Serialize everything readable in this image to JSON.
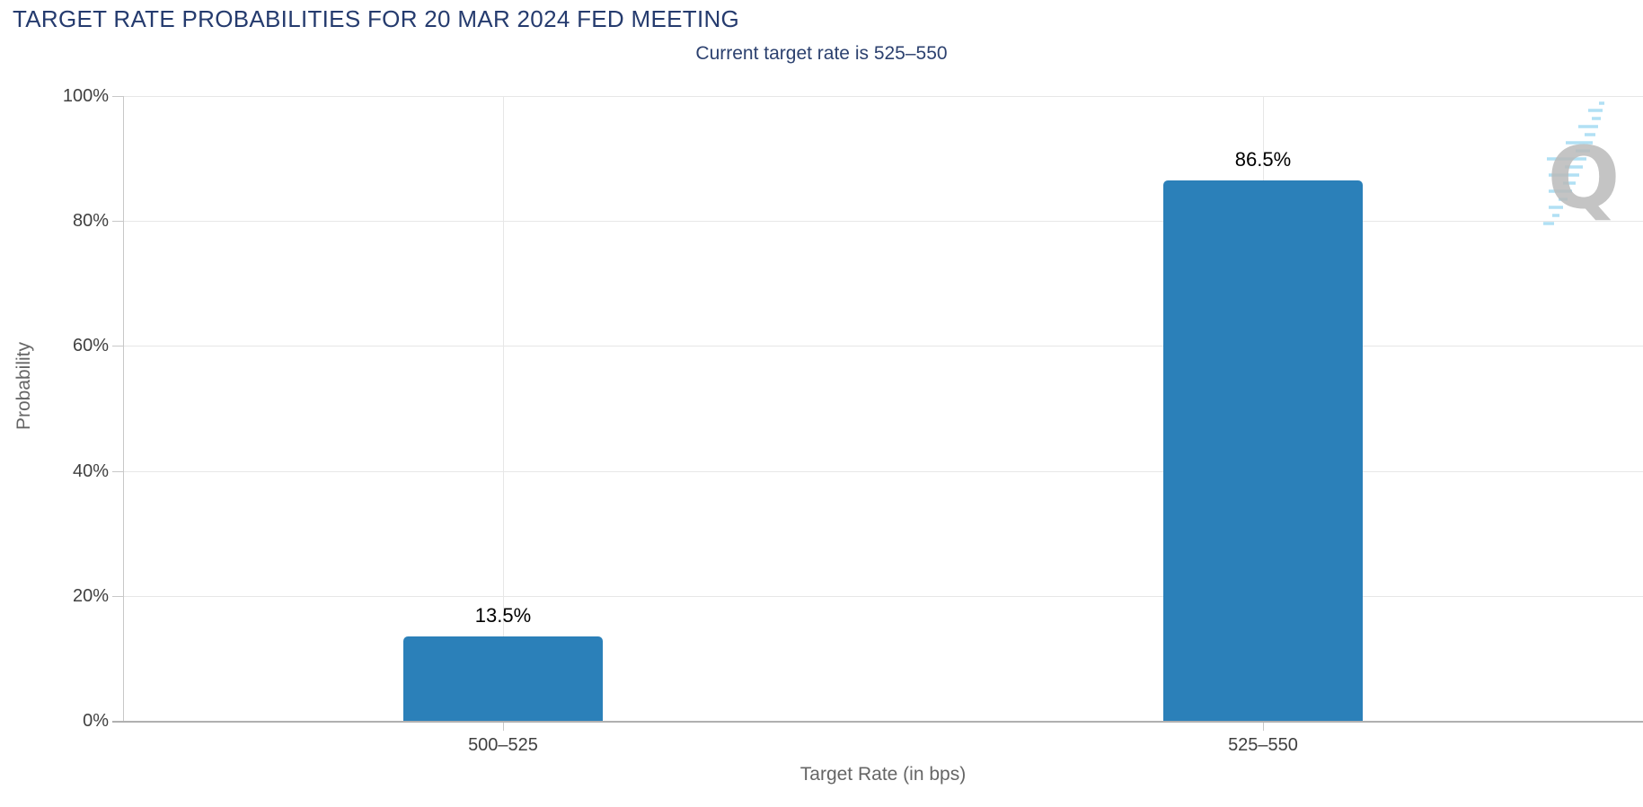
{
  "chart_data": {
    "type": "bar",
    "title": "TARGET RATE PROBABILITIES FOR 20 MAR 2024 FED MEETING",
    "subtitle": "Current target rate is 525–550",
    "categories": [
      "500–525",
      "525–550"
    ],
    "values": [
      13.5,
      86.5
    ],
    "value_labels": [
      "13.5%",
      "86.5%"
    ],
    "xlabel": "Target Rate (in bps)",
    "ylabel": "Probability",
    "ylim": [
      0,
      100
    ],
    "yticks": [
      0,
      20,
      40,
      60,
      80,
      100
    ],
    "ytick_labels": [
      "0%",
      "20%",
      "40%",
      "60%",
      "80%",
      "100%"
    ],
    "grid": true,
    "legend": "none",
    "bar_color": "#2b80b9"
  },
  "colors": {
    "title_navy": "#253b6e",
    "subtitle_navy": "#2c416f",
    "bar_blue": "#2b80b9",
    "grid_line": "#e7e7e7",
    "axis_line": "#c8c8c8",
    "axis_line_dark": "#b0b0b0",
    "axis_label_gray": "#404040",
    "axis_title_gray": "#666666",
    "data_label_black": "#000000",
    "logo_gray": "#b3b3b3",
    "logo_blue": "#a5dcf3"
  },
  "watermark": {
    "letter": "Q"
  }
}
